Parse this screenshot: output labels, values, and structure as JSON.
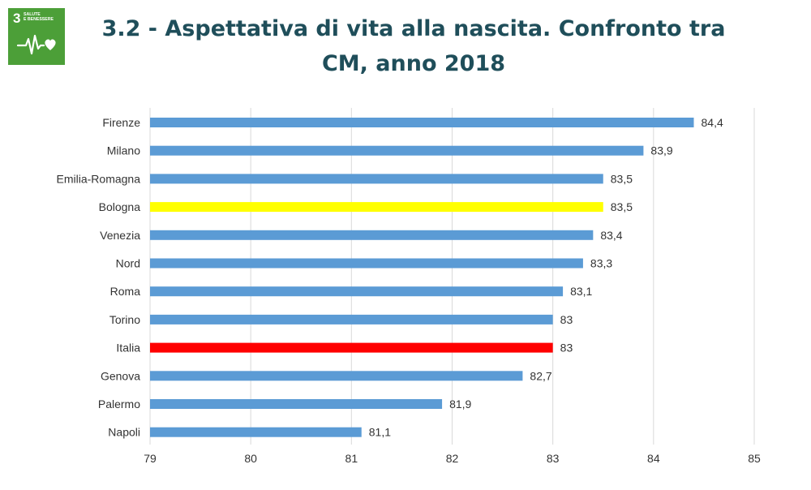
{
  "badge": {
    "number": "3",
    "line1": "SALUTE",
    "line2": "E BENESSERE",
    "icon": "heartbeat-heart-icon",
    "color": "#4c9f38"
  },
  "title": {
    "line1": "3.2 - Aspettativa di vita alla nascita. Confronto tra",
    "line2": "CM, anno 2018"
  },
  "chart_data": {
    "type": "bar",
    "orientation": "horizontal",
    "title": "",
    "xlabel": "",
    "ylabel": "",
    "xlim": [
      79,
      85
    ],
    "xticks": [
      "79",
      "80",
      "81",
      "82",
      "83",
      "84",
      "85"
    ],
    "grid": "vertical",
    "legend": "none",
    "default_color": "#5b9bd5",
    "categories": [
      "Firenze",
      "Milano",
      "Emilia-Romagna",
      "Bologna",
      "Venezia",
      "Nord",
      "Roma",
      "Torino",
      "Italia",
      "Genova",
      "Palermo",
      "Napoli"
    ],
    "values": [
      84.4,
      83.9,
      83.5,
      83.5,
      83.4,
      83.3,
      83.1,
      83,
      83,
      82.7,
      81.9,
      81.1
    ],
    "value_labels": [
      "84,4",
      "83,9",
      "83,5",
      "83,5",
      "83,4",
      "83,3",
      "83,1",
      "83",
      "83",
      "82,7",
      "81,9",
      "81,1"
    ],
    "colors": [
      "#5b9bd5",
      "#5b9bd5",
      "#5b9bd5",
      "#ffff00",
      "#5b9bd5",
      "#5b9bd5",
      "#5b9bd5",
      "#5b9bd5",
      "#ff0000",
      "#5b9bd5",
      "#5b9bd5",
      "#5b9bd5"
    ]
  }
}
